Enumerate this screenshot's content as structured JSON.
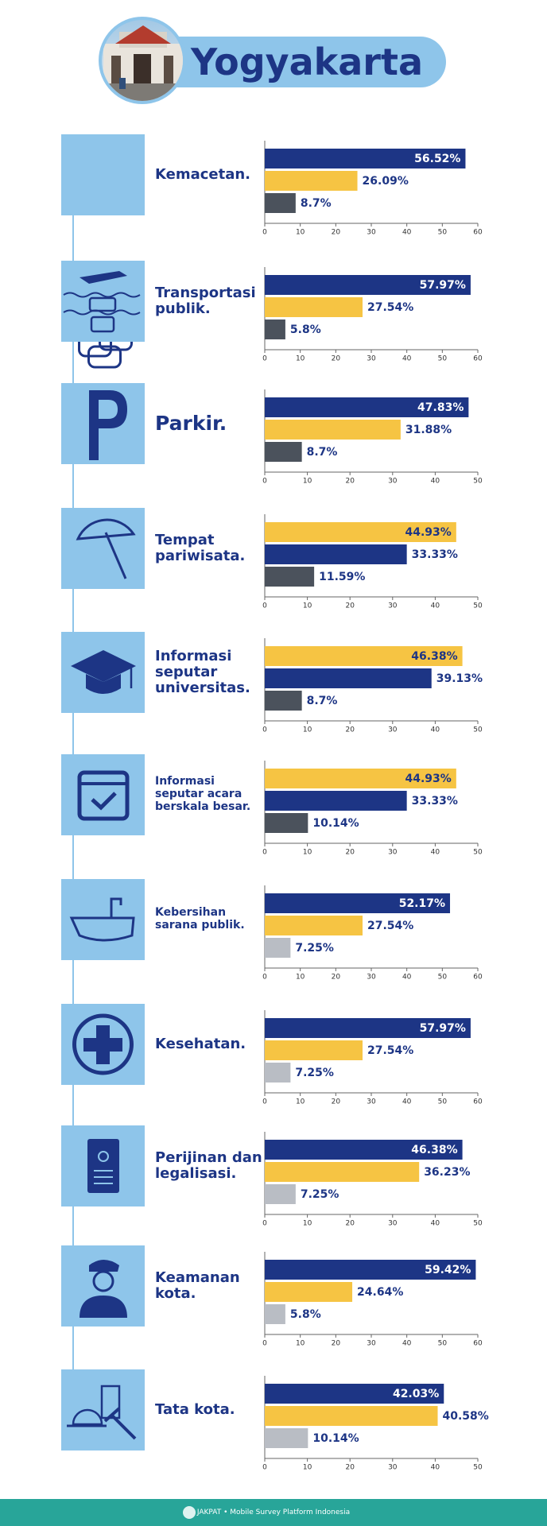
{
  "header": {
    "title": "Yogyakarta"
  },
  "footer": {
    "text": "JAKPAT • Mobile Survey Platform Indonesia"
  },
  "chart_data": [
    {
      "type": "bar",
      "title": "Kemacetan.",
      "values": [
        56.52,
        26.09,
        8.7
      ],
      "value_labels": [
        "56.52%",
        "26.09%",
        "8.7%"
      ],
      "colors": [
        "#1d3585",
        "#f6c443",
        "#4b525c"
      ],
      "xlim": [
        0,
        60
      ],
      "xticks": [
        0,
        10,
        20,
        30,
        40,
        50,
        60
      ]
    },
    {
      "type": "bar",
      "title": "Transportasi publik.",
      "values": [
        57.97,
        27.54,
        5.8
      ],
      "value_labels": [
        "57.97%",
        "27.54%",
        "5.8%"
      ],
      "colors": [
        "#1d3585",
        "#f6c443",
        "#4b525c"
      ],
      "xlim": [
        0,
        60
      ],
      "xticks": [
        0,
        10,
        20,
        30,
        40,
        50,
        60
      ]
    },
    {
      "type": "bar",
      "title": "Parkir.",
      "values": [
        47.83,
        31.88,
        8.7
      ],
      "value_labels": [
        "47.83%",
        "31.88%",
        "8.7%"
      ],
      "colors": [
        "#1d3585",
        "#f6c443",
        "#4b525c"
      ],
      "xlim": [
        0,
        50
      ],
      "xticks": [
        0,
        10,
        20,
        30,
        40,
        50
      ]
    },
    {
      "type": "bar",
      "title": "Tempat pariwisata.",
      "values": [
        44.93,
        33.33,
        11.59
      ],
      "value_labels": [
        "44.93%",
        "33.33%",
        "11.59%"
      ],
      "colors": [
        "#f6c443",
        "#1d3585",
        "#4b525c"
      ],
      "xlim": [
        0,
        50
      ],
      "xticks": [
        0,
        10,
        20,
        30,
        40,
        50
      ]
    },
    {
      "type": "bar",
      "title": "Informasi seputar universitas.",
      "values": [
        46.38,
        39.13,
        8.7
      ],
      "value_labels": [
        "46.38%",
        "39.13%",
        "8.7%"
      ],
      "colors": [
        "#f6c443",
        "#1d3585",
        "#4b525c"
      ],
      "xlim": [
        0,
        50
      ],
      "xticks": [
        0,
        10,
        20,
        30,
        40,
        50
      ]
    },
    {
      "type": "bar",
      "title": "Informasi seputar acara berskala besar.",
      "values": [
        44.93,
        33.33,
        10.14
      ],
      "value_labels": [
        "44.93%",
        "33.33%",
        "10.14%"
      ],
      "colors": [
        "#f6c443",
        "#1d3585",
        "#4b525c"
      ],
      "xlim": [
        0,
        50
      ],
      "xticks": [
        0,
        10,
        20,
        30,
        40,
        50
      ]
    },
    {
      "type": "bar",
      "title": "Kebersihan sarana publik.",
      "values": [
        52.17,
        27.54,
        7.25
      ],
      "value_labels": [
        "52.17%",
        "27.54%",
        "7.25%"
      ],
      "colors": [
        "#1d3585",
        "#f6c443",
        "#b9bdc4"
      ],
      "xlim": [
        0,
        60
      ],
      "xticks": [
        0,
        10,
        20,
        30,
        40,
        50,
        60
      ]
    },
    {
      "type": "bar",
      "title": "Kesehatan.",
      "values": [
        57.97,
        27.54,
        7.25
      ],
      "value_labels": [
        "57.97%",
        "27.54%",
        "7.25%"
      ],
      "colors": [
        "#1d3585",
        "#f6c443",
        "#b9bdc4"
      ],
      "xlim": [
        0,
        60
      ],
      "xticks": [
        0,
        10,
        20,
        30,
        40,
        50,
        60
      ]
    },
    {
      "type": "bar",
      "title": "Perijinan dan legalisasi.",
      "values": [
        46.38,
        36.23,
        7.25
      ],
      "value_labels": [
        "46.38%",
        "36.23%",
        "7.25%"
      ],
      "colors": [
        "#1d3585",
        "#f6c443",
        "#b9bdc4"
      ],
      "xlim": [
        0,
        50
      ],
      "xticks": [
        0,
        10,
        20,
        30,
        40,
        50
      ]
    },
    {
      "type": "bar",
      "title": "Keamanan kota.",
      "values": [
        59.42,
        24.64,
        5.8
      ],
      "value_labels": [
        "59.42%",
        "24.64%",
        "5.8%"
      ],
      "colors": [
        "#1d3585",
        "#f6c443",
        "#b9bdc4"
      ],
      "xlim": [
        0,
        60
      ],
      "xticks": [
        0,
        10,
        20,
        30,
        40,
        50,
        60
      ]
    },
    {
      "type": "bar",
      "title": "Tata kota.",
      "values": [
        42.03,
        40.58,
        10.14
      ],
      "value_labels": [
        "42.03%",
        "40.58%",
        "10.14%"
      ],
      "colors": [
        "#1d3585",
        "#f6c443",
        "#b9bdc4"
      ],
      "xlim": [
        0,
        50
      ],
      "xticks": [
        0,
        10,
        20,
        30,
        40,
        50
      ]
    }
  ]
}
